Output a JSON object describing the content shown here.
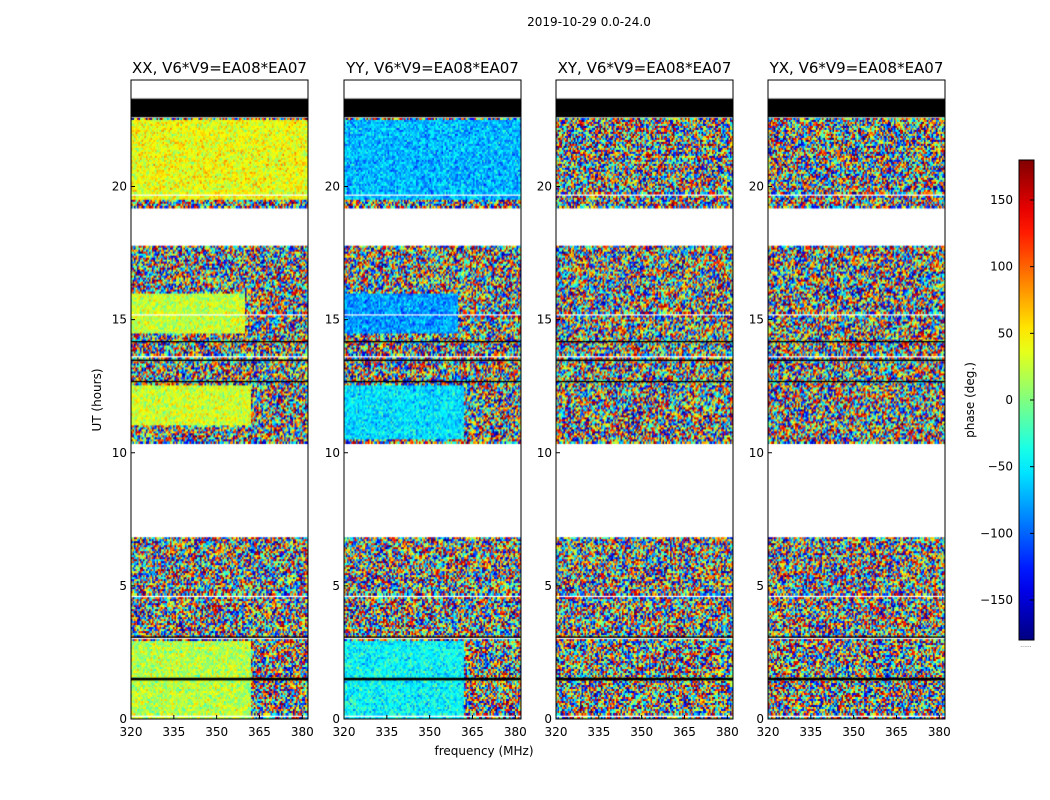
{
  "figure": {
    "suptitle": "2019-10-29 0.0-24.0",
    "xlabel": "frequency (MHz)",
    "ylabel": "UT (hours)",
    "colorbar_label": "phase (deg.)",
    "colorbar_footnote": "......",
    "colormap": "jet"
  },
  "chart_data": {
    "type": "heatmap",
    "x_unit": "MHz",
    "y_unit": "hours",
    "xlim": [
      320,
      382
    ],
    "ylim": [
      0,
      24
    ],
    "x_ticks": [
      320,
      335,
      350,
      365,
      380
    ],
    "y_ticks": [
      0,
      5,
      10,
      15,
      20
    ],
    "colorbar_range": [
      -180,
      180
    ],
    "colorbar_ticks": [
      -150,
      -100,
      -50,
      0,
      50,
      100,
      150
    ],
    "no_data_intervals_hours": [
      [
        0.0,
        0.0
      ],
      [
        6.85,
        10.35
      ],
      [
        17.75,
        19.2
      ],
      [
        22.6,
        24.0
      ]
    ],
    "flagged_black_intervals_hours": [
      [
        1.45,
        1.55
      ],
      [
        22.6,
        23.3
      ]
    ],
    "panels": [
      {
        "title": "XX, V6*V9=EA08*EA07",
        "coherent_phase_deg": 20,
        "coherent_segments": [
          {
            "t0": 0.0,
            "t1": 2.9,
            "f_max": 362,
            "phase": 20
          },
          {
            "t0": 11.0,
            "t1": 12.5,
            "f_max": 362,
            "phase": 30
          },
          {
            "t0": 14.5,
            "t1": 16.0,
            "f_max": 360,
            "phase": 25
          },
          {
            "t0": 19.5,
            "t1": 22.5,
            "f_max": 382,
            "phase": 40
          }
        ]
      },
      {
        "title": "YY, V6*V9=EA08*EA07",
        "coherent_phase_deg": -60,
        "coherent_segments": [
          {
            "t0": 0.0,
            "t1": 2.9,
            "f_max": 362,
            "phase": -45
          },
          {
            "t0": 10.5,
            "t1": 12.5,
            "f_max": 362,
            "phase": -55
          },
          {
            "t0": 14.5,
            "t1": 16.0,
            "f_max": 360,
            "phase": -80
          },
          {
            "t0": 19.5,
            "t1": 22.5,
            "f_max": 382,
            "phase": -70
          }
        ]
      },
      {
        "title": "XY, V6*V9=EA08*EA07",
        "coherent_phase_deg": null,
        "coherent_segments": []
      },
      {
        "title": "YX, V6*V9=EA08*EA07",
        "coherent_phase_deg": null,
        "coherent_segments": []
      }
    ]
  }
}
